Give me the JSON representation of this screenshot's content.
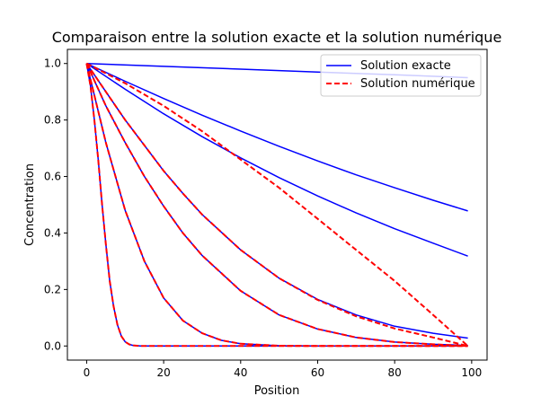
{
  "chart_data": {
    "type": "line",
    "title": "Comparaison entre la solution exacte et la solution numérique",
    "xlabel": "Position",
    "ylabel": "Concentration",
    "xlim": [
      -5,
      104
    ],
    "ylim": [
      -0.05,
      1.05
    ],
    "xticks": [
      0,
      20,
      40,
      60,
      80,
      100
    ],
    "yticks": [
      0.0,
      0.2,
      0.4,
      0.6,
      0.8,
      1.0
    ],
    "grid": false,
    "legend": {
      "placement": "top-right",
      "entries": [
        {
          "label": "Solution exacte",
          "color": "#0000ff",
          "style": "solid"
        },
        {
          "label": "Solution numérique",
          "color": "#ff0000",
          "style": "dashed"
        }
      ]
    },
    "series": [
      {
        "group": "exacte",
        "color": "#0000ff",
        "style": "solid",
        "x": [
          0,
          20,
          40,
          60,
          80,
          99
        ],
        "y": [
          1.0,
          0.99,
          0.98,
          0.97,
          0.96,
          0.95
        ]
      },
      {
        "group": "exacte",
        "color": "#0000ff",
        "style": "solid",
        "x": [
          0,
          10,
          20,
          30,
          40,
          50,
          60,
          70,
          80,
          90,
          99
        ],
        "y": [
          1.0,
          0.937,
          0.876,
          0.817,
          0.761,
          0.707,
          0.655,
          0.606,
          0.56,
          0.516,
          0.478
        ]
      },
      {
        "group": "exacte",
        "color": "#0000ff",
        "style": "solid",
        "x": [
          0,
          10,
          20,
          30,
          40,
          50,
          60,
          70,
          80,
          90,
          99
        ],
        "y": [
          1.0,
          0.909,
          0.822,
          0.741,
          0.666,
          0.596,
          0.531,
          0.471,
          0.415,
          0.364,
          0.318
        ]
      },
      {
        "group": "exacte",
        "color": "#0000ff",
        "style": "solid",
        "x": [
          0,
          5,
          10,
          15,
          20,
          25,
          30,
          40,
          50,
          60,
          70,
          80,
          90,
          99
        ],
        "y": [
          1.0,
          0.9,
          0.8,
          0.71,
          0.62,
          0.54,
          0.465,
          0.34,
          0.24,
          0.165,
          0.11,
          0.07,
          0.045,
          0.028
        ]
      },
      {
        "group": "exacte",
        "color": "#0000ff",
        "style": "solid",
        "x": [
          0,
          5,
          10,
          15,
          20,
          25,
          30,
          40,
          50,
          60,
          70,
          80,
          90,
          99
        ],
        "y": [
          1.0,
          0.85,
          0.72,
          0.6,
          0.495,
          0.4,
          0.32,
          0.195,
          0.11,
          0.06,
          0.03,
          0.014,
          0.006,
          0.002
        ]
      },
      {
        "group": "exacte",
        "color": "#0000ff",
        "style": "solid",
        "x": [
          0,
          5,
          10,
          15,
          20,
          25,
          30,
          35,
          40,
          50,
          60,
          80,
          99
        ],
        "y": [
          1.0,
          0.72,
          0.48,
          0.3,
          0.17,
          0.09,
          0.045,
          0.02,
          0.008,
          0.001,
          0.0,
          0.0,
          0.0
        ]
      },
      {
        "group": "exacte",
        "color": "#0000ff",
        "style": "solid",
        "x": [
          0,
          1,
          2,
          3,
          4,
          5,
          6,
          7,
          8,
          9,
          10,
          11,
          12,
          14,
          20,
          40,
          60,
          80,
          99
        ],
        "y": [
          1.0,
          0.92,
          0.8,
          0.66,
          0.5,
          0.36,
          0.23,
          0.14,
          0.075,
          0.035,
          0.015,
          0.006,
          0.002,
          0.0,
          0.0,
          0.0,
          0.0,
          0.0,
          0.0
        ]
      },
      {
        "group": "numerique",
        "color": "#ff0000",
        "style": "dashed",
        "x": [
          0,
          10,
          20,
          30,
          40,
          50,
          60,
          70,
          80,
          90,
          99
        ],
        "y": [
          1.0,
          0.93,
          0.85,
          0.76,
          0.66,
          0.56,
          0.45,
          0.34,
          0.23,
          0.11,
          0.0
        ]
      },
      {
        "group": "numerique",
        "color": "#ff0000",
        "style": "dashed",
        "x": [
          0,
          5,
          10,
          15,
          20,
          25,
          30,
          40,
          50,
          60,
          70,
          80,
          90,
          99
        ],
        "y": [
          1.0,
          0.9,
          0.8,
          0.71,
          0.62,
          0.54,
          0.465,
          0.34,
          0.24,
          0.163,
          0.105,
          0.062,
          0.03,
          0.0
        ]
      },
      {
        "group": "numerique",
        "color": "#ff0000",
        "style": "dashed",
        "x": [
          0,
          5,
          10,
          15,
          20,
          25,
          30,
          40,
          50,
          60,
          70,
          80,
          90,
          99
        ],
        "y": [
          1.0,
          0.85,
          0.72,
          0.6,
          0.495,
          0.4,
          0.32,
          0.195,
          0.11,
          0.06,
          0.03,
          0.014,
          0.006,
          0.0
        ]
      },
      {
        "group": "numerique",
        "color": "#ff0000",
        "style": "dashed",
        "x": [
          0,
          5,
          10,
          15,
          20,
          25,
          30,
          35,
          40,
          50,
          60,
          80,
          99
        ],
        "y": [
          1.0,
          0.72,
          0.48,
          0.3,
          0.17,
          0.09,
          0.045,
          0.02,
          0.008,
          0.001,
          0.0,
          0.0,
          0.0
        ]
      },
      {
        "group": "numerique",
        "color": "#ff0000",
        "style": "dashed",
        "x": [
          0,
          1,
          2,
          3,
          4,
          5,
          6,
          7,
          8,
          9,
          10,
          11,
          12,
          14,
          20,
          40,
          60,
          80,
          99
        ],
        "y": [
          1.0,
          0.92,
          0.8,
          0.66,
          0.5,
          0.36,
          0.23,
          0.14,
          0.075,
          0.035,
          0.015,
          0.006,
          0.002,
          0.0,
          0.0,
          0.0,
          0.0,
          0.0,
          0.0
        ]
      }
    ]
  }
}
